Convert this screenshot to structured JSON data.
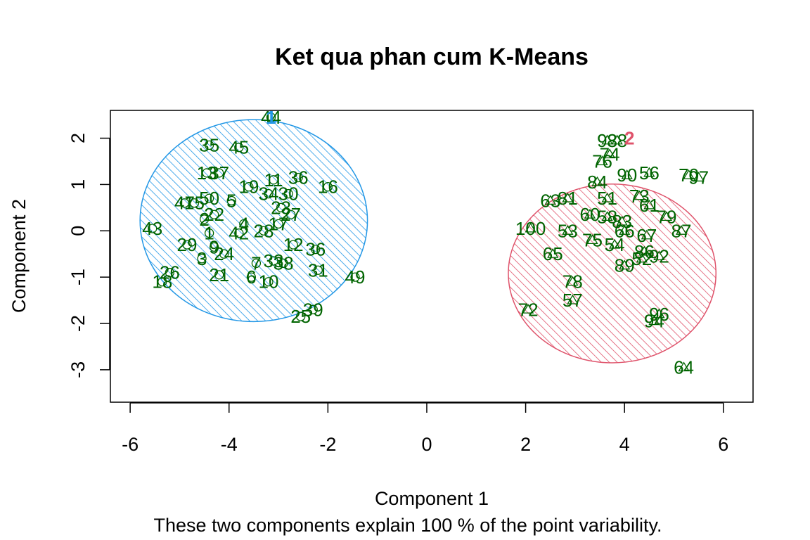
{
  "chart_data": {
    "type": "scatter",
    "title": "Ket qua phan cum K-Means",
    "xlabel": "Component 1",
    "ylabel": "Component 2",
    "subtitle": "These two components explain 100 % of the point variability.",
    "xlim": [
      -6.4,
      6.6
    ],
    "ylim": [
      -3.7,
      2.6
    ],
    "x_ticks": [
      -6,
      -4,
      -2,
      0,
      2,
      4,
      6
    ],
    "y_ticks": [
      -3,
      -2,
      -1,
      0,
      1,
      2
    ],
    "x_tick_labels": [
      "-6",
      "-4",
      "-2",
      "0",
      "2",
      "4",
      "6"
    ],
    "y_tick_labels": [
      "-3",
      "-2",
      "-1",
      "0",
      "1",
      "2"
    ],
    "label_color": "#006400",
    "clusters": [
      {
        "id": "1",
        "color": "#2297E6",
        "ellipse": {
          "cx": -3.5,
          "cy": 0.22,
          "rx": 2.3,
          "ry": 2.18
        },
        "center": {
          "label": "1",
          "x": -3.15,
          "y": 2.45
        },
        "points": [
          {
            "label": "44",
            "x": -3.15,
            "y": 2.45
          },
          {
            "label": "35",
            "x": -4.4,
            "y": 1.85
          },
          {
            "label": "45",
            "x": -3.8,
            "y": 1.8
          },
          {
            "label": "13",
            "x": -4.45,
            "y": 1.25
          },
          {
            "label": "37",
            "x": -4.2,
            "y": 1.25
          },
          {
            "label": "19",
            "x": -3.6,
            "y": 0.95
          },
          {
            "label": "11",
            "x": -3.1,
            "y": 1.1
          },
          {
            "label": "36",
            "x": -2.6,
            "y": 1.15
          },
          {
            "label": "16",
            "x": -2.0,
            "y": 0.95
          },
          {
            "label": "34",
            "x": -3.2,
            "y": 0.8
          },
          {
            "label": "30",
            "x": -2.8,
            "y": 0.8
          },
          {
            "label": "47",
            "x": -4.9,
            "y": 0.6
          },
          {
            "label": "15",
            "x": -4.7,
            "y": 0.6
          },
          {
            "label": "50",
            "x": -4.4,
            "y": 0.7
          },
          {
            "label": "5",
            "x": -3.95,
            "y": 0.65
          },
          {
            "label": "23",
            "x": -2.95,
            "y": 0.5
          },
          {
            "label": "27",
            "x": -2.75,
            "y": 0.35
          },
          {
            "label": "22",
            "x": -4.3,
            "y": 0.35
          },
          {
            "label": "2",
            "x": -4.5,
            "y": 0.25
          },
          {
            "label": "17",
            "x": -3.0,
            "y": 0.15
          },
          {
            "label": "4",
            "x": -3.7,
            "y": 0.15
          },
          {
            "label": "28",
            "x": -3.3,
            "y": 0.0
          },
          {
            "label": "42",
            "x": -3.8,
            "y": -0.05
          },
          {
            "label": "43",
            "x": -5.55,
            "y": 0.05
          },
          {
            "label": "1",
            "x": -4.4,
            "y": -0.05
          },
          {
            "label": "29",
            "x": -4.85,
            "y": -0.3
          },
          {
            "label": "12",
            "x": -2.7,
            "y": -0.3
          },
          {
            "label": "36",
            "x": -2.25,
            "y": -0.4
          },
          {
            "label": "9",
            "x": -4.3,
            "y": -0.35
          },
          {
            "label": "24",
            "x": -4.1,
            "y": -0.5
          },
          {
            "label": "3",
            "x": -4.55,
            "y": -0.6
          },
          {
            "label": "33",
            "x": -3.1,
            "y": -0.65
          },
          {
            "label": "38",
            "x": -2.9,
            "y": -0.7
          },
          {
            "label": "7",
            "x": -3.45,
            "y": -0.7
          },
          {
            "label": "31",
            "x": -2.2,
            "y": -0.85
          },
          {
            "label": "26",
            "x": -5.2,
            "y": -0.9
          },
          {
            "label": "21",
            "x": -4.2,
            "y": -0.95
          },
          {
            "label": "6",
            "x": -3.55,
            "y": -1.0
          },
          {
            "label": "10",
            "x": -3.2,
            "y": -1.1
          },
          {
            "label": "49",
            "x": -1.45,
            "y": -1.0
          },
          {
            "label": "18",
            "x": -5.35,
            "y": -1.1
          },
          {
            "label": "39",
            "x": -2.3,
            "y": -1.7
          },
          {
            "label": "25",
            "x": -2.55,
            "y": -1.85
          }
        ]
      },
      {
        "id": "2",
        "color": "#DF536B",
        "ellipse": {
          "cx": 3.75,
          "cy": -0.92,
          "rx": 2.1,
          "ry": 1.93
        },
        "center": {
          "label": "2",
          "x": 4.1,
          "y": 2.0
        },
        "points": [
          {
            "label": "93",
            "x": 3.65,
            "y": 1.95
          },
          {
            "label": "88",
            "x": 3.85,
            "y": 1.95
          },
          {
            "label": "74",
            "x": 3.7,
            "y": 1.65
          },
          {
            "label": "76",
            "x": 3.55,
            "y": 1.5
          },
          {
            "label": "70",
            "x": 5.3,
            "y": 1.2
          },
          {
            "label": "97",
            "x": 5.5,
            "y": 1.15
          },
          {
            "label": "90",
            "x": 4.05,
            "y": 1.2
          },
          {
            "label": "56",
            "x": 4.5,
            "y": 1.25
          },
          {
            "label": "84",
            "x": 3.45,
            "y": 1.05
          },
          {
            "label": "63",
            "x": 2.5,
            "y": 0.65
          },
          {
            "label": "81",
            "x": 2.85,
            "y": 0.7
          },
          {
            "label": "51",
            "x": 3.65,
            "y": 0.7
          },
          {
            "label": "73",
            "x": 4.3,
            "y": 0.75
          },
          {
            "label": "61",
            "x": 4.5,
            "y": 0.55
          },
          {
            "label": "79",
            "x": 4.85,
            "y": 0.3
          },
          {
            "label": "87",
            "x": 5.15,
            "y": 0.0
          },
          {
            "label": "100",
            "x": 2.1,
            "y": 0.05
          },
          {
            "label": "53",
            "x": 2.85,
            "y": 0.0
          },
          {
            "label": "60",
            "x": 3.3,
            "y": 0.35
          },
          {
            "label": "58",
            "x": 3.65,
            "y": 0.3
          },
          {
            "label": "83",
            "x": 3.95,
            "y": 0.2
          },
          {
            "label": "67",
            "x": 4.45,
            "y": -0.1
          },
          {
            "label": "75",
            "x": 3.35,
            "y": -0.2
          },
          {
            "label": "54",
            "x": 3.8,
            "y": -0.3
          },
          {
            "label": "66",
            "x": 4.0,
            "y": 0.0
          },
          {
            "label": "65",
            "x": 2.55,
            "y": -0.5
          },
          {
            "label": "86",
            "x": 4.4,
            "y": -0.45
          },
          {
            "label": "92",
            "x": 4.7,
            "y": -0.55
          },
          {
            "label": "52",
            "x": 4.35,
            "y": -0.6
          },
          {
            "label": "89",
            "x": 4.0,
            "y": -0.75
          },
          {
            "label": "78",
            "x": 2.95,
            "y": -1.1
          },
          {
            "label": "57",
            "x": 2.95,
            "y": -1.5
          },
          {
            "label": "72",
            "x": 2.05,
            "y": -1.7
          },
          {
            "label": "96",
            "x": 4.7,
            "y": -1.8
          },
          {
            "label": "94",
            "x": 4.6,
            "y": -1.95
          },
          {
            "label": "64",
            "x": 5.2,
            "y": -2.95
          }
        ]
      }
    ]
  }
}
